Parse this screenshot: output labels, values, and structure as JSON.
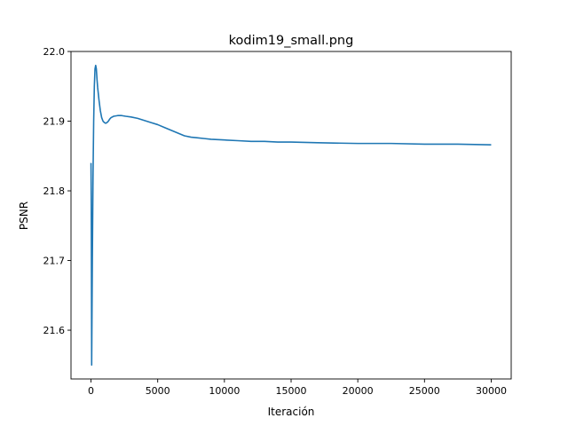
{
  "chart_data": {
    "type": "line",
    "title": "kodim19_small.png",
    "xlabel": "Iteración",
    "ylabel": "PSNR",
    "xlim": [
      -1500,
      31500
    ],
    "ylim": [
      21.53,
      22.0
    ],
    "x_ticks": [
      0,
      5000,
      10000,
      15000,
      20000,
      25000,
      30000
    ],
    "x_tick_labels": [
      "0",
      "5000",
      "10000",
      "15000",
      "20000",
      "25000",
      "30000"
    ],
    "y_ticks": [
      21.6,
      21.7,
      21.8,
      21.9,
      22.0
    ],
    "y_tick_labels": [
      "21.6",
      "21.7",
      "21.8",
      "21.9",
      "22.0"
    ],
    "grid": false,
    "series_color": "#1f77b4",
    "series": [
      {
        "x": [
          0,
          20,
          50,
          100,
          150,
          200,
          250,
          300,
          350,
          400,
          450,
          500,
          600,
          700,
          800,
          900,
          1000,
          1100,
          1200,
          1300,
          1400,
          1500,
          1700,
          2000,
          2300,
          2600,
          3000,
          3500,
          4000,
          4500,
          5000,
          5500,
          6000,
          6500,
          7000,
          7500,
          8000,
          8500,
          9000,
          10000,
          11000,
          12000,
          13000,
          14000,
          15000,
          17000,
          20000,
          22500,
          25000,
          27500,
          30000
        ],
        "y": [
          21.84,
          21.78,
          21.55,
          21.7,
          21.82,
          21.9,
          21.95,
          21.975,
          21.98,
          21.975,
          21.96,
          21.948,
          21.93,
          21.915,
          21.905,
          21.9,
          21.898,
          21.897,
          21.898,
          21.9,
          21.903,
          21.905,
          21.907,
          21.908,
          21.908,
          21.907,
          21.906,
          21.904,
          21.901,
          21.898,
          21.895,
          21.891,
          21.887,
          21.883,
          21.879,
          21.877,
          21.876,
          21.875,
          21.874,
          21.873,
          21.872,
          21.871,
          21.871,
          21.87,
          21.87,
          21.869,
          21.868,
          21.868,
          21.867,
          21.867,
          21.866
        ]
      }
    ]
  }
}
